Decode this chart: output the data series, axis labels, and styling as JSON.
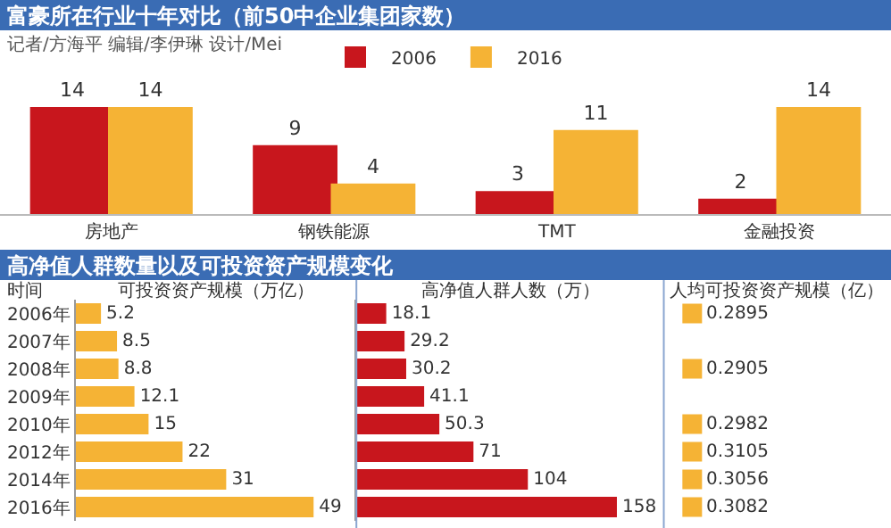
{
  "chart_data": [
    {
      "type": "bar",
      "title": "富豪所在行业十年对比（前50中企业集团家数）",
      "subtitle": "记者/方海平 编辑/李伊琳 设计/Mei",
      "categories": [
        "房地产",
        "钢铁能源",
        "TMT",
        "金融投资"
      ],
      "data_labels": true,
      "legend": "top",
      "series": [
        {
          "name": "2006",
          "color": "#c8161d",
          "values": [
            14,
            9,
            3,
            2
          ]
        },
        {
          "name": "2016",
          "color": "#f5b335",
          "values": [
            14,
            4,
            11,
            14
          ]
        }
      ]
    },
    {
      "type": "bar",
      "orientation": "horizontal",
      "title": "高净值人群数量以及可投资资产规模变化",
      "ylabel": "时间",
      "xlabel": "可投资资产规模（万亿）",
      "categories": [
        "2006年",
        "2007年",
        "2008年",
        "2009年",
        "2010年",
        "2012年",
        "2014年",
        "2016年"
      ],
      "data_labels": true,
      "color": "#f5b335",
      "values": [
        5.2,
        8.5,
        8.8,
        12.1,
        15,
        22,
        31,
        49
      ]
    },
    {
      "type": "bar",
      "orientation": "horizontal",
      "xlabel": "高净值人群人数（万）",
      "tick_labels": false,
      "data_labels": true,
      "color": "#c8161d",
      "values": [
        18.1,
        29.2,
        30.2,
        41.1,
        50.3,
        71,
        104,
        158
      ]
    },
    {
      "type": "other",
      "xlabel": "人均可投资资产规模（亿）",
      "data_labels": true,
      "color": "#f5b335",
      "values": [
        0.2895,
        null,
        0.2905,
        null,
        0.2982,
        0.3105,
        0.3056,
        0.3082
      ]
    }
  ]
}
